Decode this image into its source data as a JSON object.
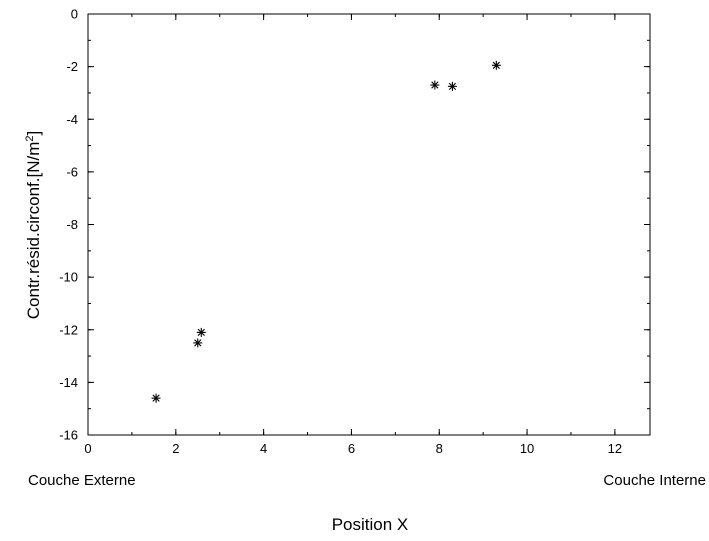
{
  "chart_data": {
    "type": "scatter",
    "title": "",
    "xlabel": "Position X",
    "ylabel_main": "Contr.résid.circonf.[N/m",
    "ylabel_sup": "2",
    "ylabel_end": "]",
    "xlim": [
      0,
      12.8
    ],
    "ylim": [
      -16,
      0
    ],
    "x_ticks": [
      0,
      2,
      4,
      6,
      8,
      10,
      12
    ],
    "y_ticks": [
      0,
      -2,
      -4,
      -6,
      -8,
      -10,
      -12,
      -14,
      -16
    ],
    "x_minor_step": 1,
    "y_minor_step": 1,
    "grid": false,
    "marker": "asterisk",
    "color": "#000000",
    "annotations": {
      "left": "Couche Externe",
      "right": "Couche Interne"
    },
    "series": [
      {
        "x": [
          1.55,
          2.5,
          2.58,
          7.9,
          8.3,
          9.3
        ],
        "y": [
          -14.6,
          -12.5,
          -12.1,
          -2.7,
          -2.75,
          -1.95
        ]
      }
    ]
  }
}
